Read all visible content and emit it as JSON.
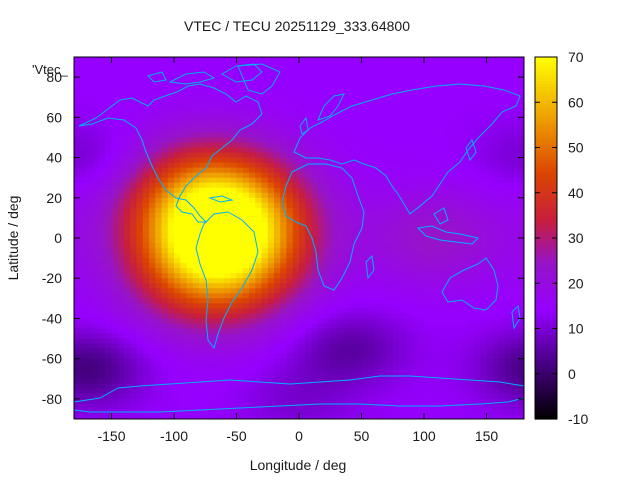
{
  "chart_data": {
    "type": "heatmap",
    "title": "VTEC / TECU 20251129_333.64800",
    "xlabel": "Longitude / deg",
    "ylabel": "Latitude / deg",
    "legend_key": "'Vtec_",
    "xlim": [
      -180,
      180
    ],
    "ylim": [
      -90,
      90
    ],
    "xticks": [
      -150,
      -100,
      -50,
      0,
      50,
      100,
      150
    ],
    "yticks": [
      -80,
      -60,
      -40,
      -20,
      0,
      20,
      40,
      60,
      80
    ],
    "colorbar": {
      "range": [
        -10,
        70
      ],
      "ticks": [
        -10,
        0,
        10,
        20,
        30,
        40,
        50,
        60,
        70
      ]
    },
    "background_value": 14,
    "features": [
      {
        "name": "equatorial-anomaly-peak",
        "lon": -55,
        "lat": 5,
        "value": 58
      },
      {
        "name": "north-crest",
        "lon": -75,
        "lat": 18,
        "value": 48
      },
      {
        "name": "south-crest",
        "lon": -70,
        "lat": -15,
        "value": 50
      },
      {
        "name": "asia-pacific-enhancement",
        "lon": 110,
        "lat": 0,
        "value": 26
      },
      {
        "name": "southern-trough-east",
        "lon": 40,
        "lat": -55,
        "value": 4
      },
      {
        "name": "southern-trough-west",
        "lon": -170,
        "lat": -65,
        "value": 0
      },
      {
        "name": "northern-pacific-low",
        "lon": -170,
        "lat": 40,
        "value": 8
      },
      {
        "name": "polar-south",
        "lon": 0,
        "lat": -80,
        "value": 9
      }
    ]
  }
}
